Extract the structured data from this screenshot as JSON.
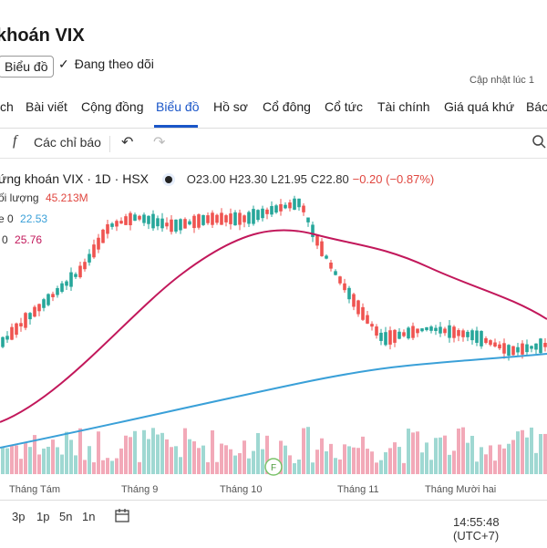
{
  "header": {
    "title": "khoán VIX",
    "chart_chip": "Biểu đồ",
    "following_label": "Đang theo dõi",
    "updated_label": "Cập nhật lúc 1"
  },
  "tabs": [
    "ch",
    "Bài viết",
    "Cộng đồng",
    "Biểu đồ",
    "Hồ sơ",
    "Cổ đông",
    "Cổ tức",
    "Tài chính",
    "Giá quá khứ",
    "Báo"
  ],
  "toolbar": {
    "indicators_label": "Các chỉ báo",
    "fx_glyph": "f",
    "undo_glyph": "↶",
    "redo_glyph": "↷"
  },
  "symbol_info": {
    "name": "ứng khoán VIX · 1D · HSX",
    "open": "O23.00",
    "high": "H23.30",
    "low": "L21.95",
    "close": "C22.80",
    "change": "−0.20 (−0.87%)"
  },
  "legend": {
    "volume_label": "ối lượng",
    "volume_value": "45.213M",
    "ma1_label": "e 0",
    "ma1_value": "22.53",
    "ma2_label": "0",
    "ma2_value": "25.76"
  },
  "x_axis": [
    "Tháng Tám",
    "Tháng 9",
    "Tháng 10",
    "Tháng 11",
    "Tháng Mười hai"
  ],
  "event_marker": "F",
  "bottom": {
    "timeframes": [
      "3p",
      "1p",
      "5n",
      "1n"
    ],
    "clock": "14:55:48 (UTC+7)"
  },
  "colors": {
    "up": "#26a69a",
    "down": "#ef5350",
    "ma_red": "#c2185b",
    "ma_blue": "#3aa0d8",
    "accent": "#1a56c8"
  },
  "chart_data": {
    "type": "candlestick",
    "x_ticks": [
      "Tháng Tám",
      "Tháng 9",
      "Tháng 10",
      "Tháng 11",
      "Tháng Mười hai"
    ],
    "visible_candles": 120,
    "last_bar": {
      "open": 23.0,
      "high": 23.3,
      "low": 21.95,
      "close": 22.8,
      "change": -0.2,
      "change_pct": -0.87
    },
    "volume_last": "45.213M",
    "ma_values": [
      22.53,
      25.76
    ]
  }
}
